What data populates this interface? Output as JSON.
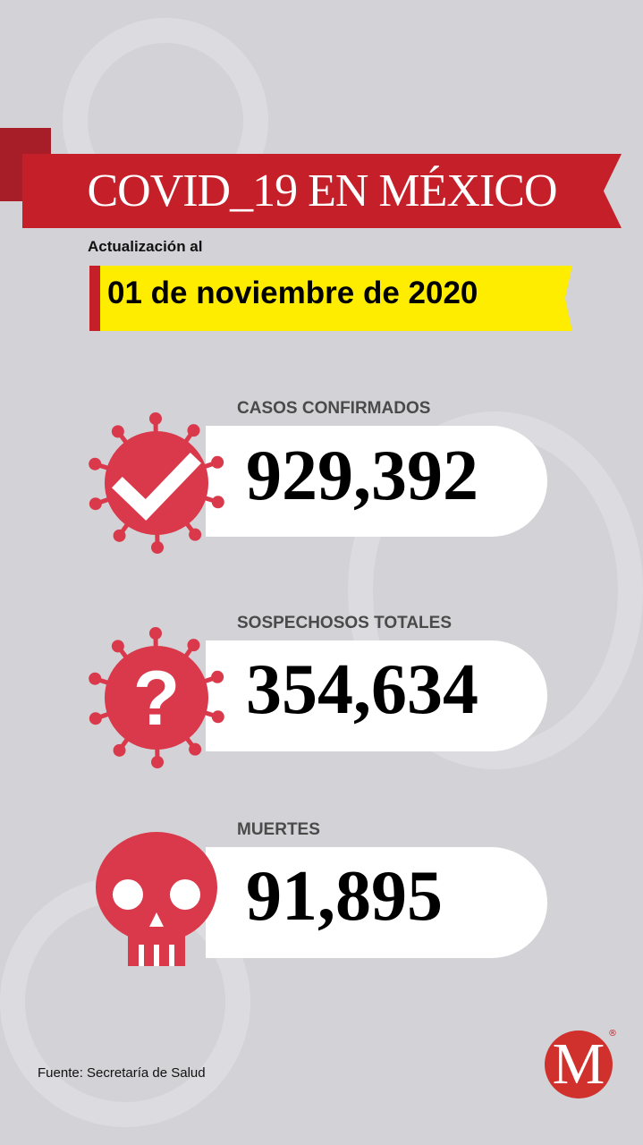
{
  "header": {
    "title": "COVID_19 EN MÉXICO",
    "update_label": "Actualización al",
    "date": "01 de noviembre de 2020"
  },
  "stats": [
    {
      "label": "CASOS CONFIRMADOS",
      "value": "929,392",
      "icon": "virus-check-icon"
    },
    {
      "label": "SOSPECHOSOS TOTALES",
      "value": "354,634",
      "icon": "virus-question-icon"
    },
    {
      "label": "MUERTES",
      "value": "91,895",
      "icon": "skull-icon"
    }
  ],
  "footer": {
    "source": "Fuente: Secretaría de Salud",
    "logo_letter": "M",
    "registered": "®"
  },
  "colors": {
    "red": "#c5202a",
    "icon_red": "#d9394b",
    "yellow": "#ffed00",
    "background": "#d3d2d6"
  }
}
